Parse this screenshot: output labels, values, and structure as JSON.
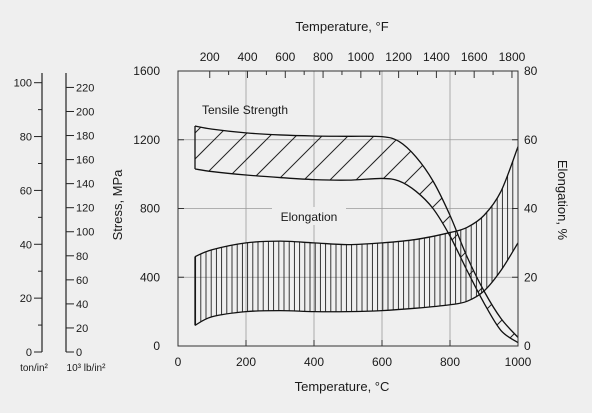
{
  "chart_data": {
    "type": "area",
    "title": "",
    "xlabel": "Temperature, °C",
    "x2label": "Temperature, °F",
    "ylabel": "Stress, MPa",
    "y2label": "Elongation, %",
    "xlim": [
      0,
      1000
    ],
    "x2lim": [
      32,
      1832
    ],
    "ylim": [
      0,
      1600
    ],
    "y2lim": [
      0,
      80
    ],
    "grid": true,
    "x_ticks": [
      "0",
      "200",
      "400",
      "600",
      "800",
      "1000"
    ],
    "x2_ticks": [
      "200",
      "400",
      "600",
      "800",
      "1000",
      "1200",
      "1400",
      "1600",
      "1800"
    ],
    "y_ticks": [
      "0",
      "400",
      "800",
      "1200",
      "1600"
    ],
    "y2_ticks": [
      "0",
      "20",
      "40",
      "60",
      "80"
    ],
    "aux_scales": [
      {
        "label": "ton/in²",
        "range": [
          0,
          103.6
        ],
        "ticks": [
          "0",
          "20",
          "40",
          "60",
          "80",
          "100"
        ]
      },
      {
        "label": "10³ lb/in²",
        "range": [
          0,
          232
        ],
        "ticks": [
          "0",
          "20",
          "40",
          "60",
          "80",
          "100",
          "120",
          "140",
          "160",
          "180",
          "200",
          "220"
        ]
      }
    ],
    "series": [
      {
        "name": "Tensile Strength",
        "axis": "left",
        "hatch": "diagonal",
        "x": [
          50,
          100,
          200,
          300,
          400,
          500,
          600,
          650,
          700,
          750,
          800,
          850,
          900,
          950,
          1000
        ],
        "upper": [
          1280,
          1262,
          1240,
          1228,
          1222,
          1220,
          1218,
          1190,
          1100,
          960,
          760,
          520,
          320,
          160,
          50
        ],
        "lower": [
          1030,
          1015,
          995,
          980,
          968,
          965,
          975,
          960,
          900,
          800,
          640,
          440,
          250,
          90,
          20
        ]
      },
      {
        "name": "Elongation",
        "axis": "right",
        "hatch": "vertical",
        "x": [
          50,
          100,
          200,
          300,
          400,
          500,
          600,
          700,
          800,
          850,
          900,
          950,
          1000
        ],
        "upper": [
          26,
          28,
          30,
          30.5,
          30,
          29.5,
          30,
          31,
          33,
          34.5,
          38,
          45,
          58
        ],
        "lower": [
          6,
          8.5,
          10,
          10.3,
          10,
          10,
          10.3,
          11,
          12,
          13,
          16,
          22,
          30
        ]
      }
    ]
  }
}
